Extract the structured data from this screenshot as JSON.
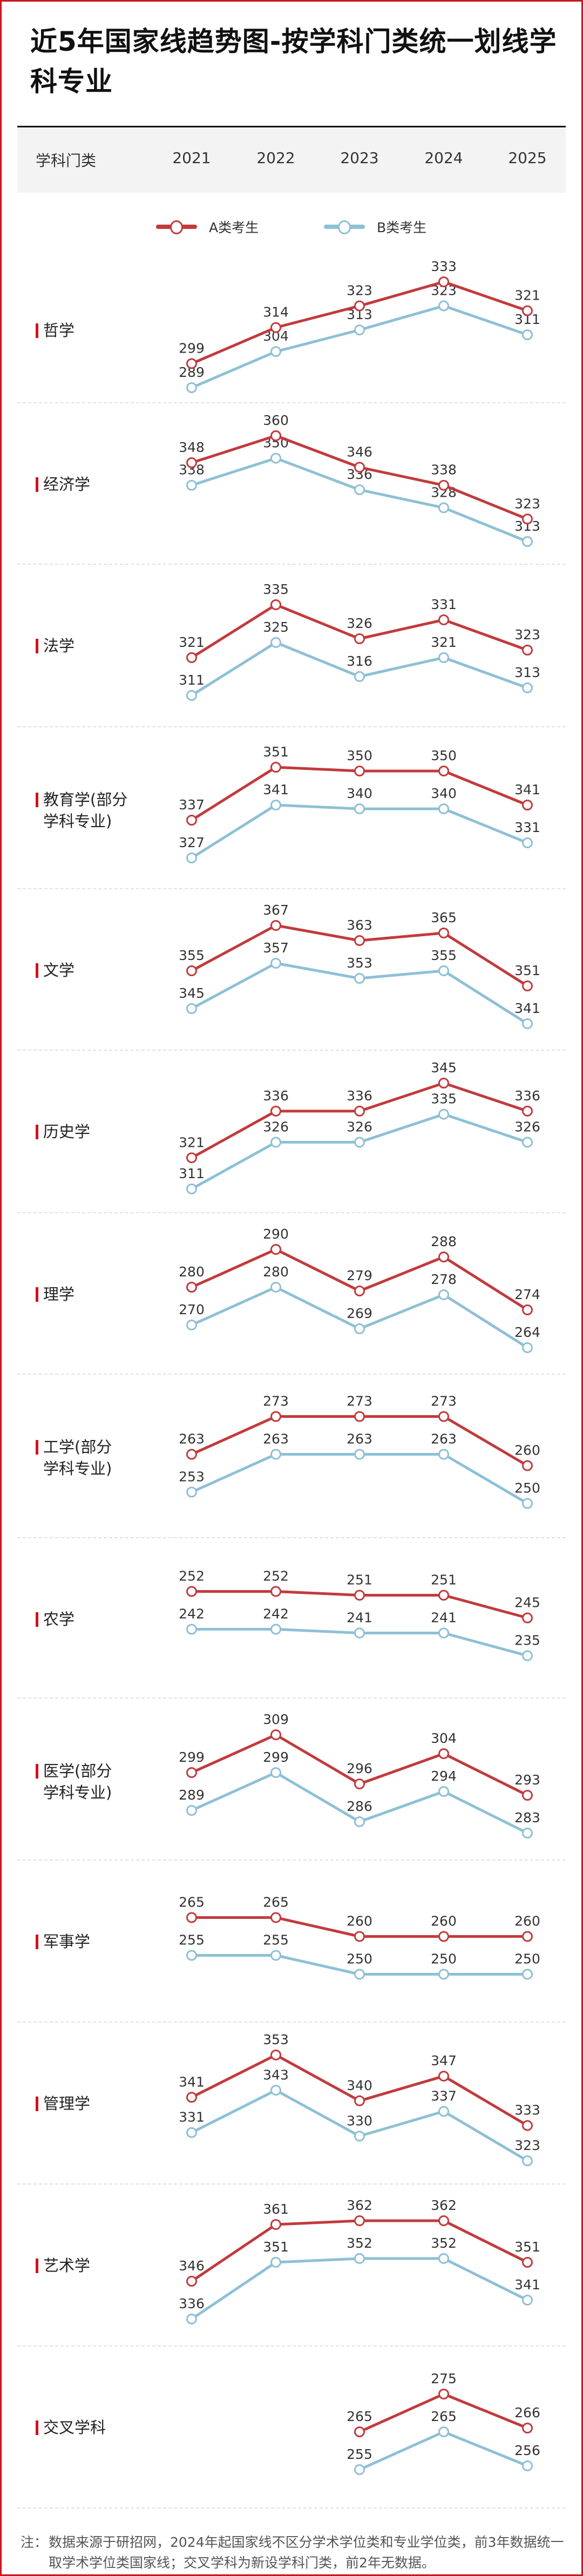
{
  "title": "近5年国家线趋势图-按学科门类统一划线学科专业",
  "header": {
    "category_label": "学科门类",
    "years": [
      "2021",
      "2022",
      "2023",
      "2024",
      "2025"
    ]
  },
  "legend": [
    {
      "name": "A类考生",
      "color": "#c23a3c"
    },
    {
      "name": "B类考生",
      "color": "#8ec0d6"
    }
  ],
  "chart_data": {
    "type": "line",
    "title": "近5年国家线趋势图-按学科门类统一划线学科专业",
    "categories": [
      "2021",
      "2022",
      "2023",
      "2024",
      "2025"
    ],
    "series_names": [
      "A类考生",
      "B类考生"
    ],
    "rows": [
      {
        "category": "哲学",
        "A": [
          299,
          314,
          323,
          333,
          321
        ],
        "B": [
          289,
          304,
          313,
          323,
          311
        ]
      },
      {
        "category": "经济学",
        "A": [
          348,
          360,
          346,
          338,
          323
        ],
        "B": [
          338,
          350,
          336,
          328,
          313
        ]
      },
      {
        "category": "法学",
        "A": [
          321,
          335,
          326,
          331,
          323
        ],
        "B": [
          311,
          325,
          316,
          321,
          313
        ]
      },
      {
        "category": "教育学(部分学科专业)",
        "A": [
          337,
          351,
          350,
          350,
          341
        ],
        "B": [
          327,
          341,
          340,
          340,
          331
        ]
      },
      {
        "category": "文学",
        "A": [
          355,
          367,
          363,
          365,
          351
        ],
        "B": [
          345,
          357,
          353,
          355,
          341
        ]
      },
      {
        "category": "历史学",
        "A": [
          321,
          336,
          336,
          345,
          336
        ],
        "B": [
          311,
          326,
          326,
          335,
          326
        ]
      },
      {
        "category": "理学",
        "A": [
          280,
          290,
          279,
          288,
          274
        ],
        "B": [
          270,
          280,
          269,
          278,
          264
        ]
      },
      {
        "category": "工学(部分学科专业)",
        "A": [
          263,
          273,
          273,
          273,
          260
        ],
        "B": [
          253,
          263,
          263,
          263,
          250
        ]
      },
      {
        "category": "农学",
        "A": [
          252,
          252,
          251,
          251,
          245
        ],
        "B": [
          242,
          242,
          241,
          241,
          235
        ]
      },
      {
        "category": "医学(部分学科专业)",
        "A": [
          299,
          309,
          296,
          304,
          293
        ],
        "B": [
          289,
          299,
          286,
          294,
          283
        ]
      },
      {
        "category": "军事学",
        "A": [
          265,
          265,
          260,
          260,
          260
        ],
        "B": [
          255,
          255,
          250,
          250,
          250
        ]
      },
      {
        "category": "管理学",
        "A": [
          341,
          353,
          340,
          347,
          333
        ],
        "B": [
          331,
          343,
          330,
          337,
          323
        ]
      },
      {
        "category": "艺术学",
        "A": [
          346,
          361,
          362,
          362,
          351
        ],
        "B": [
          336,
          351,
          352,
          352,
          341
        ]
      },
      {
        "category": "交叉学科",
        "A": [
          null,
          null,
          265,
          275,
          266
        ],
        "B": [
          null,
          null,
          255,
          265,
          256
        ]
      }
    ]
  },
  "category_lines": [
    [
      "哲学"
    ],
    [
      "经济学"
    ],
    [
      "法学"
    ],
    [
      "教育学(部分",
      "学科专业)"
    ],
    [
      "文学"
    ],
    [
      "历史学"
    ],
    [
      "理学"
    ],
    [
      "工学(部分",
      "学科专业)"
    ],
    [
      "农学"
    ],
    [
      "医学(部分",
      "学科专业)"
    ],
    [
      "军事学"
    ],
    [
      "管理学"
    ],
    [
      "艺术学"
    ],
    [
      "交叉学科"
    ]
  ],
  "note": {
    "label": "注：",
    "text": "数据来源于研招网，2024年起国家线不区分学术学位类和专业学位类，前3年数据统一取学术学位类国家线；交叉学科为新设学科门类，前2年无数据。"
  }
}
